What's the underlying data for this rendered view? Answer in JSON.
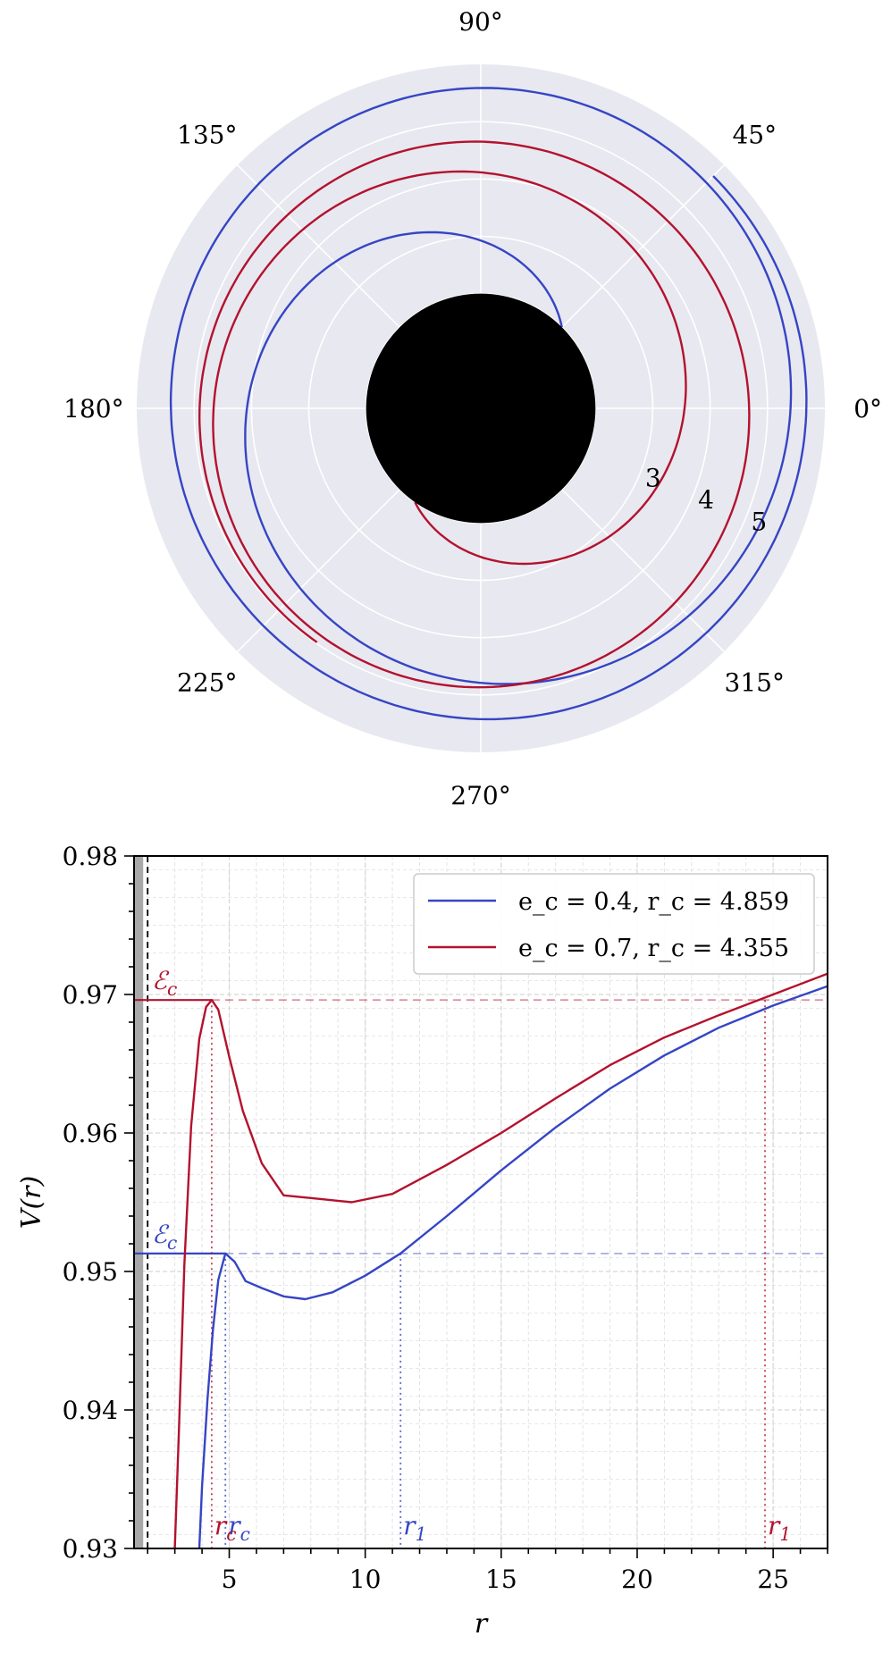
{
  "colors": {
    "blue": "#3545c4",
    "red": "#b3122e",
    "polar_bg": "#e8e8f0",
    "grid": "#ffffff",
    "excluded_band": "#a8a8a8"
  },
  "chart_data": [
    {
      "type": "polar-line",
      "theta_tick_labels": [
        "0°",
        "45°",
        "90°",
        "135°",
        "180°",
        "225°",
        "270°",
        "315°"
      ],
      "r_tick_labels": [
        "3",
        "4",
        "5"
      ],
      "rlim": [
        0,
        6
      ],
      "horizon_radius": 2,
      "grid": true,
      "series": [
        {
          "color": "blue",
          "r_start": 5.55,
          "r_end": 2.0,
          "theta_end_deg": 45,
          "turns": 2
        },
        {
          "color": "red",
          "r_start": 4.8,
          "r_end": 2.0,
          "theta_end_deg": 235,
          "turns": 2
        }
      ]
    },
    {
      "type": "line",
      "xlabel": "r",
      "ylabel": "V(r)",
      "xlim": [
        1.5,
        27
      ],
      "ylim": [
        0.93,
        0.98
      ],
      "xticks": [
        5,
        10,
        15,
        20,
        25
      ],
      "xtick_labels": [
        "5",
        "10",
        "15",
        "20",
        "25"
      ],
      "yticks": [
        0.93,
        0.94,
        0.95,
        0.96,
        0.97,
        0.98
      ],
      "ytick_labels": [
        "0.93",
        "0.94",
        "0.95",
        "0.96",
        "0.97",
        "0.98"
      ],
      "grid": true,
      "legend_position": "top-right",
      "horizon_r": 2,
      "series": [
        {
          "name": "e_c = 0.4,  r_c = 4.859",
          "color": "blue",
          "x": [
            3.9,
            4.0,
            4.2,
            4.4,
            4.6,
            4.859,
            5.2,
            5.6,
            6.2,
            7.0,
            7.8,
            8.8,
            10.0,
            11.3,
            13.0,
            15.0,
            17.0,
            19.0,
            21.0,
            23.0,
            25.0,
            27.0
          ],
          "y": [
            0.93,
            0.9345,
            0.9408,
            0.9458,
            0.9494,
            0.9513,
            0.9507,
            0.9493,
            0.9488,
            0.9482,
            0.948,
            0.9485,
            0.9497,
            0.9513,
            0.954,
            0.9573,
            0.9604,
            0.9632,
            0.9656,
            0.9676,
            0.9692,
            0.9706
          ],
          "energy_label": "ℰ_c",
          "energy": 0.9513,
          "r_c": 4.859,
          "r_1": 11.3,
          "r_c_label": "r_c",
          "r_1_label": "r_1"
        },
        {
          "name": "e_c = 0.7,  r_c = 4.355",
          "color": "red",
          "x": [
            3.0,
            3.15,
            3.35,
            3.6,
            3.9,
            4.15,
            4.355,
            4.6,
            5.0,
            5.5,
            6.2,
            7.0,
            8.0,
            9.5,
            11.0,
            13.0,
            15.0,
            17.0,
            19.0,
            21.0,
            23.0,
            25.0,
            27.0
          ],
          "y": [
            0.93,
            0.9385,
            0.9505,
            0.9605,
            0.9668,
            0.9691,
            0.9696,
            0.9689,
            0.9655,
            0.9616,
            0.9578,
            0.9555,
            0.9553,
            0.955,
            0.9556,
            0.9577,
            0.96,
            0.9625,
            0.9649,
            0.9669,
            0.9685,
            0.97,
            0.9715
          ],
          "energy_label": "ℰ_c",
          "energy": 0.9696,
          "r_c": 4.355,
          "r_1": 24.7,
          "r_c_label": "r_c",
          "r_1_label": "r_1"
        }
      ]
    }
  ]
}
